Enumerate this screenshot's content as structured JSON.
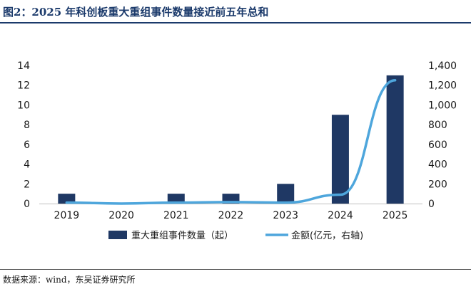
{
  "figure": {
    "title": "图2：2025 年科创板重大重组事件数量接近前五年总和",
    "source": "数据来源：wind，东吴证券研究所"
  },
  "chart_data": {
    "type": "bar+line",
    "categories": [
      "2019",
      "2020",
      "2021",
      "2022",
      "2023",
      "2024",
      "2025"
    ],
    "series": [
      {
        "name": "重大重组事件数量（起）",
        "type": "bar",
        "axis": "left",
        "values": [
          1,
          0,
          1,
          1,
          2,
          9,
          13
        ],
        "color": "#1f3864"
      },
      {
        "name": "金额(亿元，右轴)",
        "type": "line",
        "axis": "right",
        "values": [
          10,
          0,
          10,
          15,
          10,
          90,
          1250
        ],
        "color": "#4ea6dc"
      }
    ],
    "y_left": {
      "min": 0,
      "max": 14,
      "ticks": [
        0,
        2,
        4,
        6,
        8,
        10,
        12,
        14
      ],
      "tick_labels": [
        "0",
        "2",
        "4",
        "6",
        "8",
        "10",
        "12",
        "14"
      ]
    },
    "y_right": {
      "min": 0,
      "max": 1400,
      "ticks": [
        0,
        200,
        400,
        600,
        800,
        1000,
        1200,
        1400
      ],
      "tick_labels": [
        "0",
        "200",
        "400",
        "600",
        "800",
        "1,000",
        "1,200",
        "1,400"
      ]
    },
    "grid": false,
    "legend_position": "bottom"
  }
}
